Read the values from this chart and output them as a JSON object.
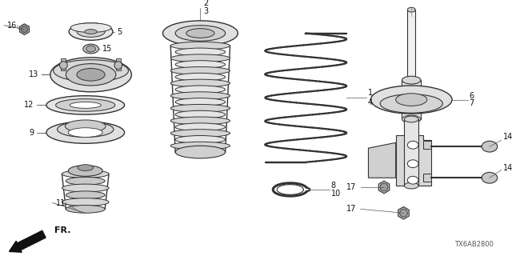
{
  "bg_color": "#ffffff",
  "line_color": "#333333",
  "label_color": "#111111",
  "figsize": [
    6.4,
    3.2
  ],
  "dpi": 100
}
